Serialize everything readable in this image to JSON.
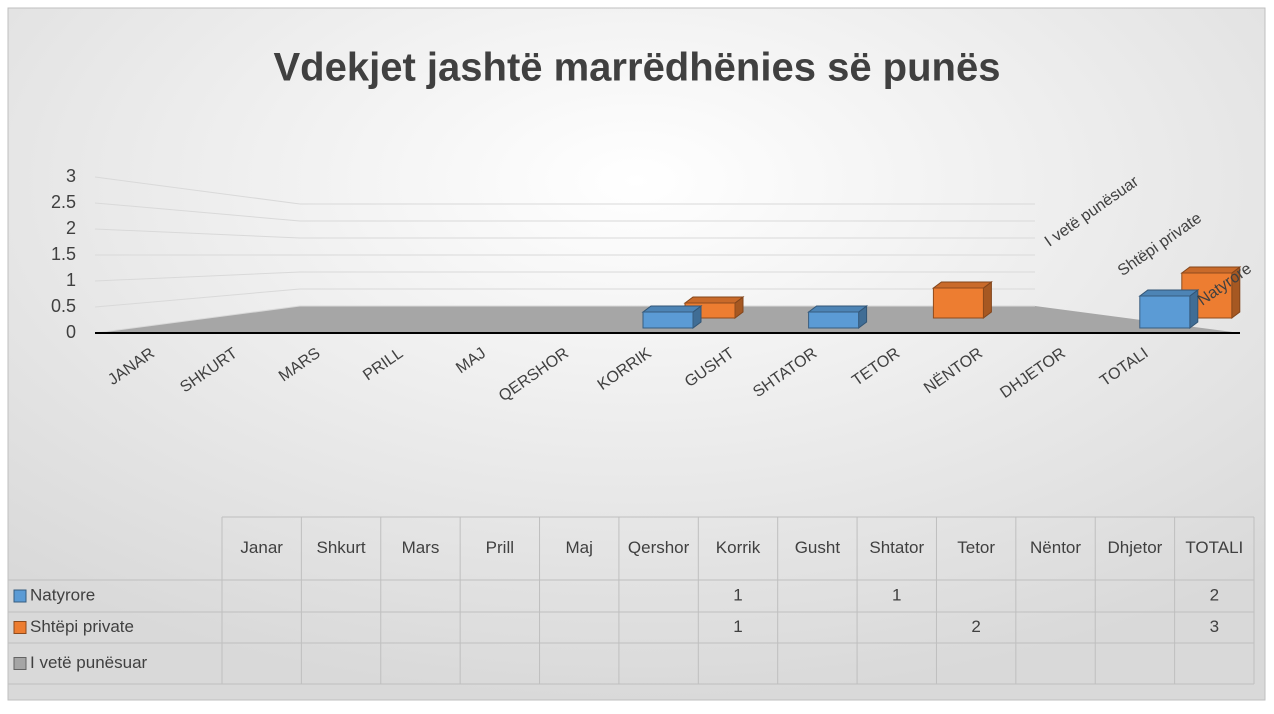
{
  "chart_data": {
    "type": "bar",
    "title": "Vdekjet jashtë marrëdhënies së punës",
    "categories": [
      "JANAR",
      "SHKURT",
      "MARS",
      "PRILL",
      "MAJ",
      "QERSHOR",
      "KORRIK",
      "GUSHT",
      "SHTATOR",
      "TETOR",
      "NËNTOR",
      "DHJETOR",
      "TOTALI"
    ],
    "table_columns": [
      "Janar",
      "Shkurt",
      "Mars",
      "Prill",
      "Maj",
      "Qershor",
      "Korrik",
      "Gusht",
      "Shtator",
      "Tetor",
      "Nëntor",
      "Dhjetor",
      "TOTALI"
    ],
    "series": [
      {
        "name": "Natyrore",
        "color": "#5b9bd5",
        "values": [
          null,
          null,
          null,
          null,
          null,
          null,
          1,
          null,
          1,
          null,
          null,
          null,
          2
        ]
      },
      {
        "name": "Shtëpi private",
        "color": "#ed7d31",
        "values": [
          null,
          null,
          null,
          null,
          null,
          null,
          1,
          null,
          null,
          2,
          null,
          null,
          3
        ]
      },
      {
        "name": "I vetë punësuar",
        "color": "#a5a5a5",
        "values": [
          null,
          null,
          null,
          null,
          null,
          null,
          null,
          null,
          null,
          null,
          null,
          null,
          null
        ]
      }
    ],
    "ylim": [
      0,
      3
    ],
    "yticks": [
      0,
      0.5,
      1,
      1.5,
      2,
      2.5,
      3
    ],
    "grid": true
  }
}
